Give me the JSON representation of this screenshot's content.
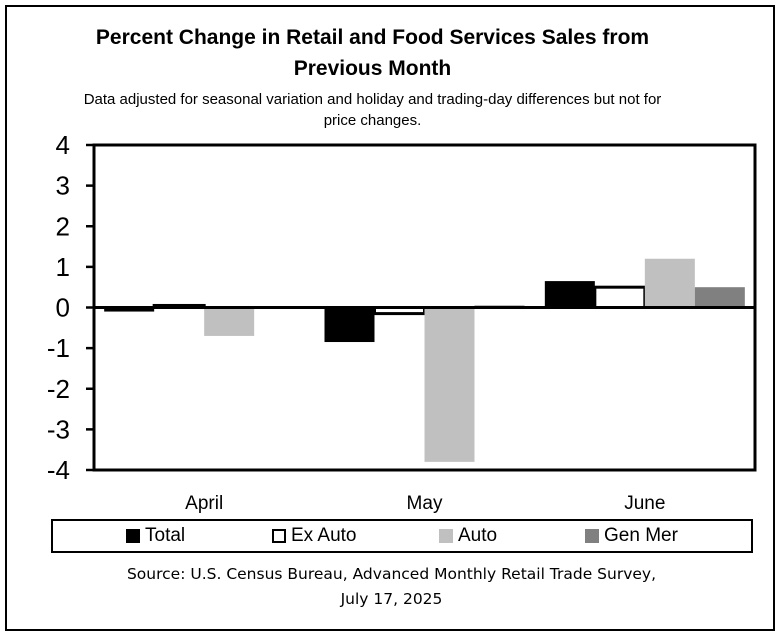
{
  "chart_data": {
    "type": "bar",
    "title": "Percent Change in Retail and Food Services Sales from Previous Month",
    "subtitle": "Data adjusted for seasonal variation and holiday and trading-day differences but not for price changes.",
    "categories": [
      "April",
      "May",
      "June"
    ],
    "series": [
      {
        "name": "Total",
        "color": "#000000",
        "values": [
          -0.1,
          -0.85,
          0.65
        ]
      },
      {
        "name": "Ex Auto",
        "color": "#ffffff",
        "values": [
          0.05,
          -0.15,
          0.5
        ]
      },
      {
        "name": "Auto",
        "color": "#c0c0c0",
        "values": [
          -0.7,
          -3.8,
          1.2
        ]
      },
      {
        "name": "Gen Mer",
        "color": "#808080",
        "values": [
          null,
          0.05,
          0.5
        ]
      }
    ],
    "ylim": [
      -4,
      4
    ],
    "yticks": [
      "4",
      "3",
      "2",
      "1",
      "0",
      "-1",
      "-2",
      "-3",
      "-4"
    ],
    "grid": false,
    "legend_position": "bottom",
    "source_line1": "Source: U.S. Census Bureau, Advanced Monthly Retail Trade Survey,",
    "source_line2": "July 17, 2025"
  }
}
